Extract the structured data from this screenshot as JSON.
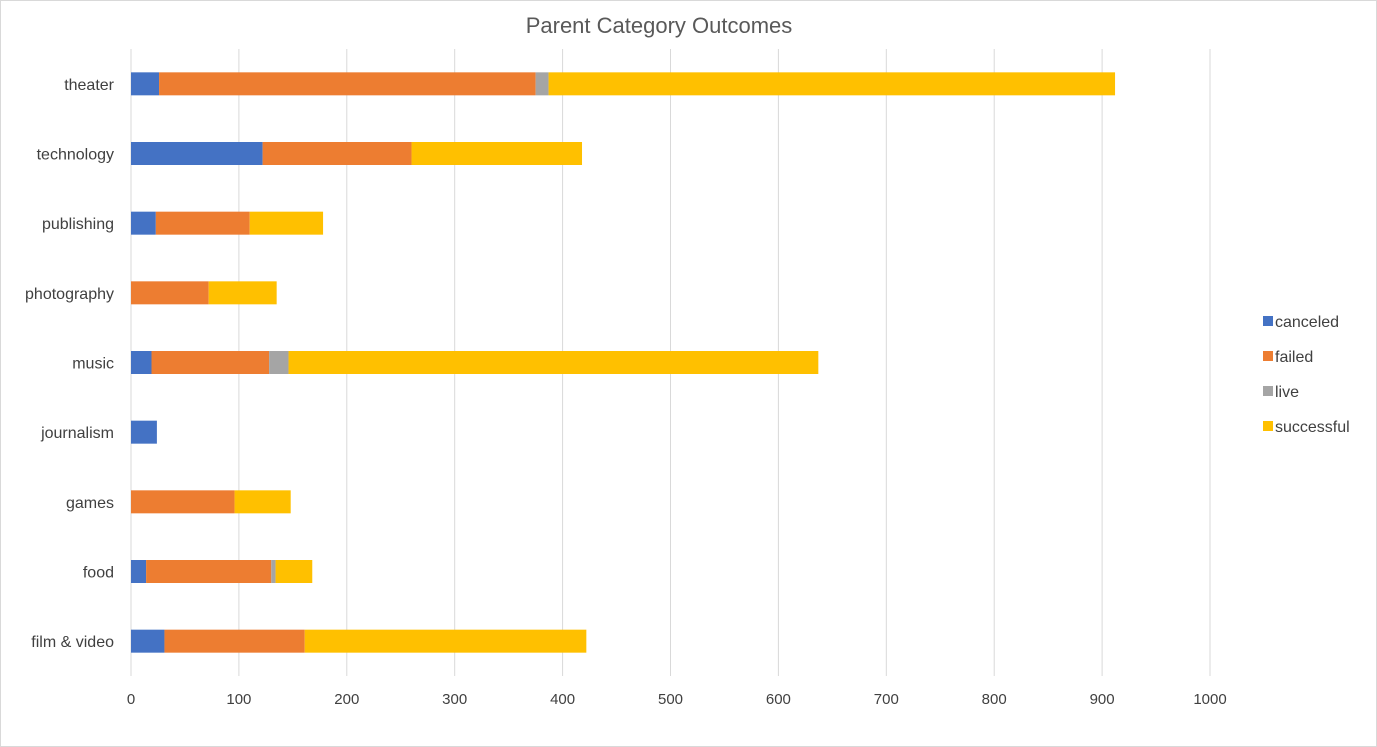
{
  "chart_data": {
    "type": "bar",
    "orientation": "horizontal",
    "stacked": true,
    "title": "Parent Category Outcomes",
    "xlabel": "",
    "ylabel": "",
    "xlim": [
      0,
      1000
    ],
    "x_ticks": [
      0,
      100,
      200,
      300,
      400,
      500,
      600,
      700,
      800,
      900,
      1000
    ],
    "grid": true,
    "legend_position": "right",
    "categories": [
      "theater",
      "technology",
      "publishing",
      "photography",
      "music",
      "journalism",
      "games",
      "food",
      "film & video"
    ],
    "series": [
      {
        "name": "canceled",
        "color": "#4472C4",
        "values": [
          26,
          122,
          23,
          0,
          19,
          24,
          0,
          14,
          31
        ]
      },
      {
        "name": "failed",
        "color": "#ED7D31",
        "values": [
          349,
          138,
          87,
          72,
          109,
          0,
          96,
          116,
          130
        ]
      },
      {
        "name": "live",
        "color": "#A5A5A5",
        "values": [
          12,
          0,
          0,
          0,
          18,
          0,
          0,
          4,
          0
        ]
      },
      {
        "name": "successful",
        "color": "#FFC000",
        "values": [
          525,
          158,
          68,
          63,
          491,
          0,
          52,
          34,
          261
        ]
      }
    ]
  }
}
